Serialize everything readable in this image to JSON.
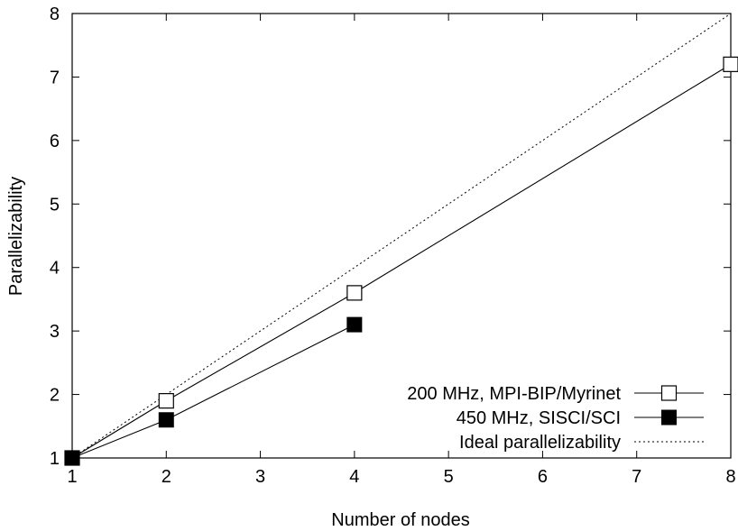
{
  "chart_data": {
    "type": "line",
    "title": "",
    "xlabel": "Number of nodes",
    "ylabel": "Parallelizability",
    "xlim": [
      1,
      8
    ],
    "ylim": [
      1,
      8
    ],
    "xticks": [
      "1",
      "2",
      "3",
      "4",
      "5",
      "6",
      "7",
      "8"
    ],
    "yticks": [
      "1",
      "2",
      "3",
      "4",
      "5",
      "6",
      "7",
      "8"
    ],
    "grid": false,
    "legend_position": "bottom-right",
    "series": [
      {
        "name": "200 MHz, MPI-BIP/Myrinet",
        "marker": "open-square",
        "line": "solid",
        "color": "#000000",
        "x": [
          1,
          2,
          4,
          8
        ],
        "y": [
          1.0,
          1.9,
          3.6,
          7.2
        ]
      },
      {
        "name": "450 MHz, SISCI/SCI",
        "marker": "filled-square",
        "line": "solid",
        "color": "#000000",
        "x": [
          1,
          2,
          4
        ],
        "y": [
          1.0,
          1.6,
          3.1
        ]
      },
      {
        "name": "Ideal parallelizability",
        "marker": "none",
        "line": "dotted",
        "color": "#000000",
        "x": [
          1,
          8
        ],
        "y": [
          1,
          8
        ]
      }
    ]
  }
}
